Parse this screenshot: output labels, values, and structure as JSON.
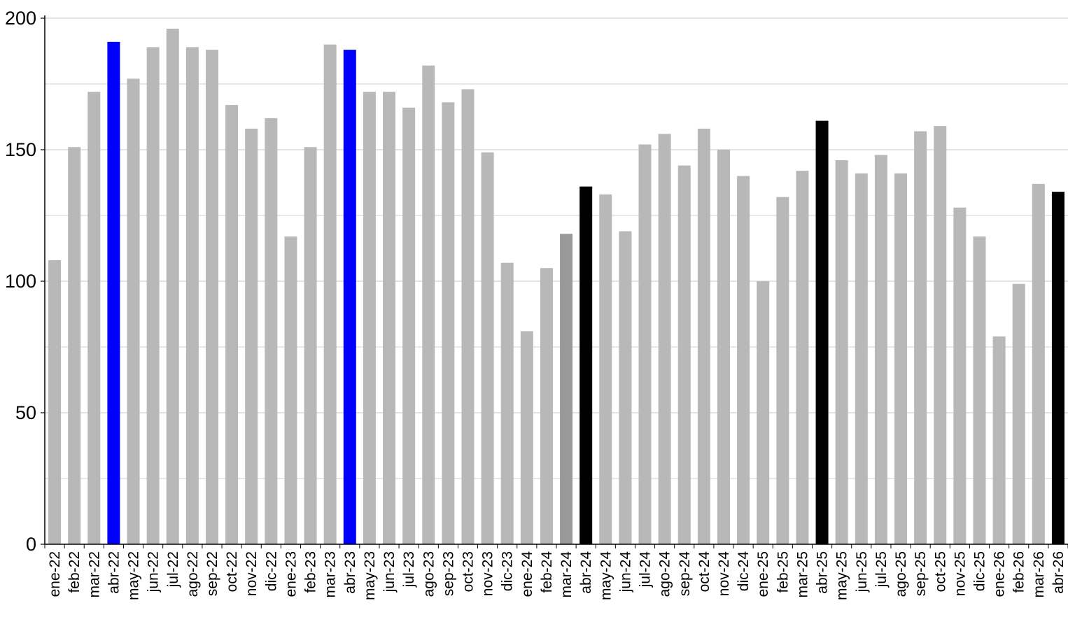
{
  "chart_data": {
    "type": "bar",
    "title": "",
    "xlabel": "",
    "ylabel": "",
    "ylim": [
      0,
      200
    ],
    "yticks": [
      "0",
      "50",
      "100",
      "150",
      "200"
    ],
    "grid": true,
    "legend": "none",
    "colors": {
      "default": "#b8b8b8",
      "highlight_blue": "#0000ff",
      "highlight_black": "#000000",
      "highlight_dark_gray": "#999999",
      "grid": "#d9d9d9",
      "axis": "#000000"
    },
    "categories": [
      "ene-22",
      "feb-22",
      "mar-22",
      "abr-22",
      "may-22",
      "jun-22",
      "jul-22",
      "ago-22",
      "sep-22",
      "oct-22",
      "nov-22",
      "dic-22",
      "ene-23",
      "feb-23",
      "mar-23",
      "abr-23",
      "may-23",
      "jun-23",
      "jul-23",
      "ago-23",
      "sep-23",
      "oct-23",
      "nov-23",
      "dic-23",
      "ene-24",
      "feb-24",
      "mar-24",
      "abr-24",
      "may-24",
      "jun-24",
      "jul-24",
      "ago-24",
      "sep-24",
      "oct-24",
      "nov-24",
      "dic-24",
      "ene-25",
      "feb-25",
      "mar-25",
      "abr-25",
      "may-25",
      "jun-25",
      "jul-25",
      "ago-25",
      "sep-25",
      "oct-25",
      "nov-25",
      "dic-25",
      "ene-26",
      "feb-26",
      "mar-26",
      "abr-26"
    ],
    "values": [
      108,
      151,
      172,
      191,
      177,
      189,
      196,
      189,
      188,
      167,
      158,
      162,
      117,
      151,
      190,
      188,
      172,
      172,
      166,
      182,
      168,
      173,
      149,
      107,
      81,
      105,
      118,
      136,
      133,
      119,
      152,
      156,
      144,
      158,
      150,
      140,
      100,
      132,
      142,
      161,
      146,
      141,
      148,
      141,
      157,
      159,
      128,
      117,
      79,
      99,
      137,
      134
    ],
    "bar_colors": [
      "default",
      "default",
      "default",
      "highlight_blue",
      "default",
      "default",
      "default",
      "default",
      "default",
      "default",
      "default",
      "default",
      "default",
      "default",
      "default",
      "highlight_blue",
      "default",
      "default",
      "default",
      "default",
      "default",
      "default",
      "default",
      "default",
      "default",
      "default",
      "highlight_dark_gray",
      "highlight_black",
      "default",
      "default",
      "default",
      "default",
      "default",
      "default",
      "default",
      "default",
      "default",
      "default",
      "default",
      "highlight_black",
      "default",
      "default",
      "default",
      "default",
      "default",
      "default",
      "default",
      "default",
      "default",
      "default",
      "default",
      "highlight_black"
    ]
  }
}
